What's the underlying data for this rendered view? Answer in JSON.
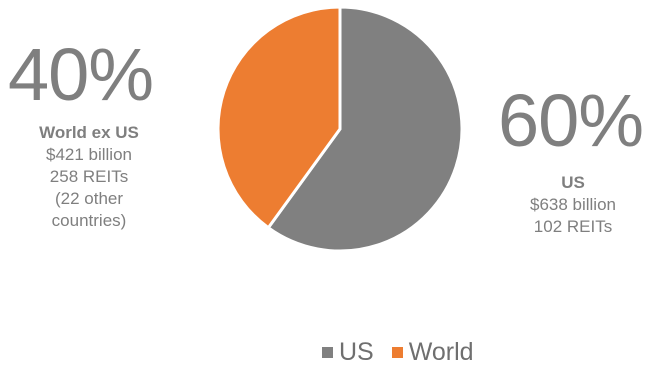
{
  "chart_data": {
    "type": "pie",
    "slices": [
      {
        "name": "US",
        "value": 60,
        "label": "60%",
        "color": "#808080",
        "details": {
          "title": "US",
          "line1": "$638 billion",
          "line2": "102 REITs"
        }
      },
      {
        "name": "World",
        "value": 40,
        "label": "40%",
        "color": "#ed7d31",
        "details": {
          "title": "World ex US",
          "line1": "$421 billion",
          "line2": "258 REITs",
          "line3": "(22 other",
          "line4": "countries)"
        }
      }
    ],
    "legend": {
      "placement": "bottom",
      "entries": [
        "US",
        "World"
      ]
    }
  }
}
